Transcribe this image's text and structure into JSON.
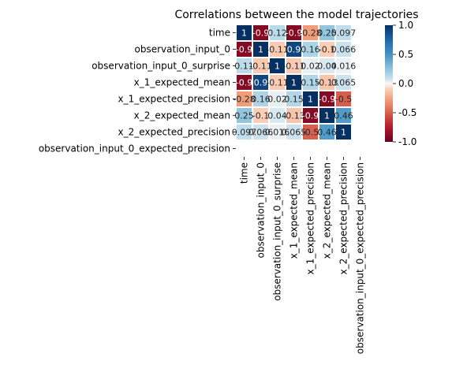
{
  "chart_data": {
    "type": "heatmap",
    "title": "Correlations between the model trajectories",
    "row_labels": [
      "time",
      "observation_input_0",
      "observation_input_0_surprise",
      "x_1_expected_mean",
      "x_1_expected_precision",
      "x_2_expected_mean",
      "x_2_expected_precision",
      "observation_input_0_expected_precision"
    ],
    "col_labels": [
      "time",
      "observation_input_0",
      "observation_input_0_surprise",
      "x_1_expected_mean",
      "x_1_expected_precision",
      "x_2_expected_mean",
      "x_2_expected_precision",
      "observation_input_0_expected_precision"
    ],
    "values": [
      [
        1,
        -0.9,
        0.12,
        -0.9,
        -0.28,
        0.25,
        0.097,
        null
      ],
      [
        -0.9,
        1,
        -0.11,
        0.9,
        0.16,
        -0.1,
        0.066,
        null
      ],
      [
        0.11,
        -0.11,
        1,
        -0.11,
        0.02,
        0.04,
        0.016,
        null
      ],
      [
        -0.9,
        0.9,
        -0.11,
        1,
        0.15,
        -0.13,
        0.065,
        null
      ],
      [
        -0.28,
        0.16,
        0.02,
        0.15,
        1,
        -0.9,
        -0.5,
        null
      ],
      [
        0.25,
        -0.1,
        0.04,
        -0.13,
        -0.9,
        1,
        0.46,
        null
      ],
      [
        0.097,
        0.066,
        0.016,
        0.065,
        -0.5,
        0.46,
        1,
        null
      ],
      [
        null,
        null,
        null,
        null,
        null,
        null,
        null,
        null
      ]
    ],
    "cell_text": [
      [
        "1",
        "-0.9",
        "0.12",
        "-0.9",
        "-0.28",
        "0.25",
        "0.097",
        ""
      ],
      [
        "-0.9",
        "1",
        "-0.11",
        "0.9",
        "0.16",
        "-0.1",
        "0.066",
        ""
      ],
      [
        "0.11",
        "-0.11",
        "1",
        "-0.11",
        "0.02",
        "0.04",
        "0.016",
        ""
      ],
      [
        "-0.9",
        "0.9",
        "-0.11",
        "1",
        "0.15",
        "-0.13",
        "0.065",
        ""
      ],
      [
        "-0.28",
        "0.16",
        "0.02",
        "0.15",
        "1",
        "-0.9",
        "-0.5",
        ""
      ],
      [
        "0.25",
        "-0.1",
        "0.04",
        "-0.13",
        "-0.9",
        "1",
        "0.46",
        ""
      ],
      [
        "0.097",
        "0.066",
        "0.016",
        "0.065",
        "-0.5",
        "0.46",
        "1",
        ""
      ],
      [
        "",
        "",
        "",
        "",
        "",
        "",
        "",
        ""
      ]
    ],
    "colorbar": {
      "min": -1.0,
      "max": 1.0,
      "ticks": [
        "1.0",
        "0.5",
        "0.0",
        "-0.5",
        "-1.0"
      ],
      "colormap": "RdBu"
    },
    "colors": {
      "strong_negative": "#67001f",
      "negative": "#d6604d",
      "neutral": "#f7f7f7",
      "positive": "#4393c3",
      "strong_positive": "#053061"
    }
  }
}
